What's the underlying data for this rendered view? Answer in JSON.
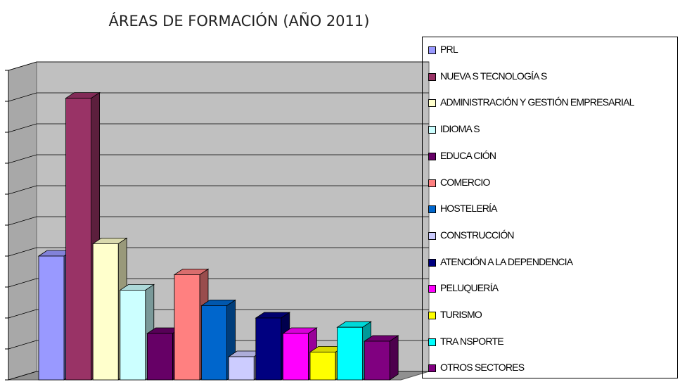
{
  "chart_data": {
    "type": "bar3d",
    "title": "ÁREAS DE FORMACIÓN (AÑO 2011)",
    "categories": [
      "PRL",
      "NUEVA S TECNOLOGÍA S",
      "ADMINISTRACIÓN Y GESTIÓN EMPRESARIAL",
      "IDIOMA S",
      "EDUCA CIÓN",
      "COMERCIO",
      "HOSTELERÍA",
      "CONSTRUCCIÓN",
      "ATENCIÓN A LA DEPENDENCIA",
      "PELUQUERÍA",
      "TURISMO",
      "TRA NSPORTE",
      "OTROS SECTORES"
    ],
    "values": [
      4.0,
      9.1,
      4.4,
      2.9,
      1.5,
      3.4,
      2.4,
      0.75,
      2.0,
      1.5,
      0.9,
      1.7,
      1.25
    ],
    "colors": [
      "#9999ff",
      "#993366",
      "#ffffcc",
      "#ccffff",
      "#660066",
      "#ff8080",
      "#0066cc",
      "#ccccff",
      "#000080",
      "#ff00ff",
      "#ffff00",
      "#00ffff",
      "#800080"
    ],
    "ylim": [
      0,
      10
    ],
    "yticks": [
      0,
      1,
      2,
      3,
      4,
      5,
      6,
      7,
      8,
      9,
      10
    ],
    "grid": true
  }
}
